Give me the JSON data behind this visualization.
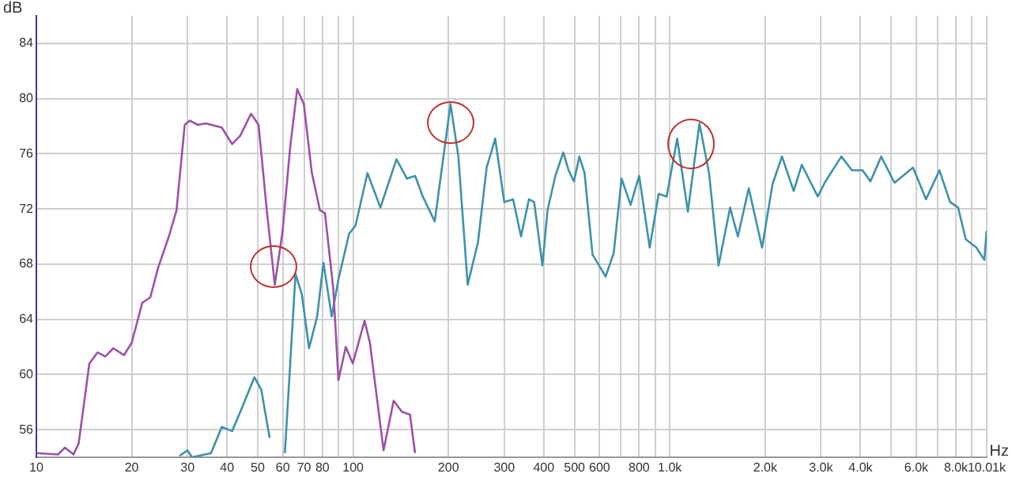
{
  "chart_data": {
    "type": "line",
    "xlabel": "Hz",
    "ylabel": "dB",
    "log": "x",
    "grid": true,
    "legend": false,
    "marker": "none",
    "line_style": "solid",
    "xlim": [
      10,
      10010
    ],
    "ylim": [
      54,
      86
    ],
    "xticks": [
      10,
      20,
      30,
      40,
      50,
      60,
      70,
      80,
      {
        "value": 90,
        "label": null
      },
      100,
      200,
      300,
      400,
      500,
      600,
      {
        "value": 700,
        "label": null
      },
      800,
      {
        "value": 900,
        "label": null
      },
      {
        "value": 1000,
        "label": "1.0k"
      },
      {
        "value": 2000,
        "label": "2.0k"
      },
      {
        "value": 3000,
        "label": "3.0k"
      },
      {
        "value": 4000,
        "label": "4.0k"
      },
      {
        "value": 5000,
        "label": null
      },
      {
        "value": 6000,
        "label": "6.0k"
      },
      {
        "value": 7000,
        "label": null
      },
      {
        "value": 8000,
        "label": "8.0k"
      },
      {
        "value": 9000,
        "label": null
      },
      {
        "value": 10010,
        "label": "10.01k"
      }
    ],
    "yticks": [
      56,
      60,
      64,
      68,
      72,
      76,
      80,
      84
    ],
    "series": [
      {
        "color": "#9b52a8",
        "x": [
          10,
          11.7,
          12.3,
          13.1,
          13.6,
          14.7,
          15.6,
          16.5,
          17.5,
          18.9,
          20,
          21.6,
          22.9,
          24.2,
          26.2,
          27.7,
          29.4,
          30.5,
          32.3,
          34.3,
          38.5,
          41.5,
          44,
          47.6,
          50.3,
          53.4,
          56.6,
          59.9,
          63.3,
          66.6,
          69.9,
          74.1,
          78.6,
          81.5,
          86.6,
          89.9,
          94.8,
          99.8,
          108.7,
          113,
          124.8,
          134.3,
          142.6,
          151.2,
          156.9
        ],
        "values": [
          54.3,
          54.2,
          54.7,
          54.2,
          55,
          60.8,
          61.6,
          61.3,
          61.9,
          61.4,
          62.3,
          65.2,
          65.6,
          67.7,
          70,
          71.9,
          78.1,
          78.4,
          78.1,
          78.2,
          77.9,
          76.7,
          77.3,
          78.9,
          78.1,
          71.9,
          66.5,
          70.4,
          76.5,
          80.7,
          79.6,
          74.6,
          71.9,
          71.7,
          66.2,
          59.6,
          62,
          60.8,
          63.9,
          62.3,
          54.5,
          58.1,
          57.3,
          57.1,
          54.3
        ]
      },
      {
        "color": "#3e92aa",
        "x": [
          28.3,
          30,
          31,
          35.6,
          38.5,
          41.5,
          44.8,
          48.8,
          51.3,
          54.5,
          57,
          60.9,
          65.8,
          68.9,
          72.6,
          77,
          80.6,
          85.6,
          89.9,
          97.1,
          101.8,
          111,
          122,
          137,
          148,
          157,
          166,
          181,
          203,
          215,
          230,
          248,
          264,
          281,
          300,
          320,
          339,
          359,
          373,
          396,
          411,
          435,
          461,
          479,
          498,
          518,
          538,
          570,
          627,
          665,
          704,
          752,
          800,
          864,
          922,
          977,
          1055,
          1140,
          1240,
          1330,
          1425,
          1550,
          1640,
          1775,
          1955,
          2110,
          2260,
          2460,
          2610,
          2930,
          3100,
          3480,
          3760,
          4060,
          4300,
          4650,
          5120,
          5860,
          6440,
          7100,
          7670,
          8130,
          8600,
          9290,
          9840,
          10000
        ],
        "values": [
          54.1,
          54.5,
          54,
          54.3,
          56.2,
          55.9,
          57.7,
          59.8,
          58.9,
          55.4,
          null,
          54.3,
          67.3,
          65.8,
          61.9,
          64.2,
          68.1,
          64.2,
          66.9,
          70.2,
          70.8,
          74.6,
          72.1,
          75.6,
          74.2,
          74.4,
          72.9,
          71.1,
          79.6,
          75.8,
          66.5,
          69.6,
          75,
          77.1,
          72.5,
          72.7,
          70,
          72.7,
          72.5,
          67.9,
          71.9,
          74.4,
          76.1,
          74.8,
          74,
          75.8,
          74.6,
          68.7,
          67.1,
          68.8,
          74.2,
          72.3,
          74.4,
          69.2,
          73.1,
          72.9,
          77.1,
          71.8,
          78.2,
          74.6,
          67.9,
          72.1,
          70,
          73.5,
          69.2,
          73.8,
          75.8,
          73.3,
          75.2,
          72.9,
          74,
          75.8,
          74.8,
          74.8,
          74,
          75.8,
          73.9,
          75,
          72.7,
          74.8,
          72.5,
          72.1,
          69.8,
          69.2,
          68.3,
          70.4
        ]
      }
    ]
  }
}
